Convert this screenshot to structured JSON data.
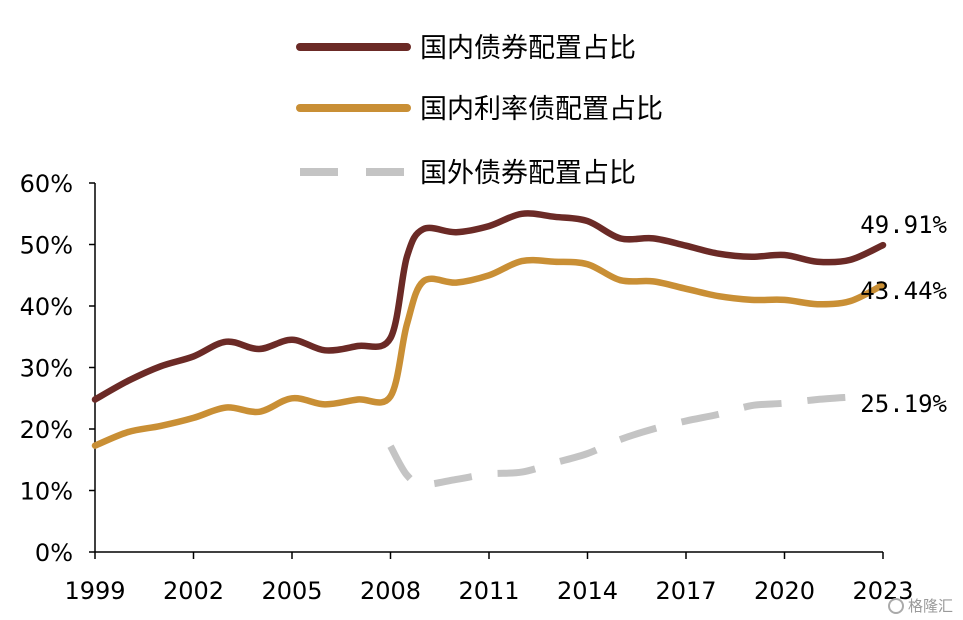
{
  "chart_data": {
    "type": "line",
    "ylim": [
      0,
      60
    ],
    "y_ticks": [
      "0%",
      "10%",
      "20%",
      "30%",
      "40%",
      "50%",
      "60%"
    ],
    "x_ticks": [
      "1999",
      "2002",
      "2005",
      "2008",
      "2011",
      "2014",
      "2017",
      "2020",
      "2023"
    ],
    "grid": false,
    "legend_position": "top",
    "series": [
      {
        "name": "国内债券配置占比",
        "color": "#6b2a26",
        "style": "solid",
        "end_label": "49.91%",
        "points": [
          [
            1999,
            24.8
          ],
          [
            2000,
            27.8
          ],
          [
            2001,
            30.2
          ],
          [
            2002,
            31.8
          ],
          [
            2003,
            34.2
          ],
          [
            2004,
            33.0
          ],
          [
            2005,
            34.5
          ],
          [
            2006,
            32.8
          ],
          [
            2007,
            33.5
          ],
          [
            2008,
            34.8
          ],
          [
            2008.5,
            48.0
          ],
          [
            2009,
            52.5
          ],
          [
            2010,
            52.0
          ],
          [
            2011,
            53.0
          ],
          [
            2012,
            55.0
          ],
          [
            2013,
            54.5
          ],
          [
            2014,
            53.8
          ],
          [
            2015,
            51.0
          ],
          [
            2016,
            51.0
          ],
          [
            2017,
            49.8
          ],
          [
            2018,
            48.5
          ],
          [
            2019,
            48.0
          ],
          [
            2020,
            48.3
          ],
          [
            2021,
            47.2
          ],
          [
            2022,
            47.5
          ],
          [
            2023,
            49.91
          ]
        ]
      },
      {
        "name": "国内利率债配置占比",
        "color": "#c98f35",
        "style": "solid",
        "end_label": "43.44%",
        "points": [
          [
            1999,
            17.3
          ],
          [
            2000,
            19.5
          ],
          [
            2001,
            20.5
          ],
          [
            2002,
            21.8
          ],
          [
            2003,
            23.5
          ],
          [
            2004,
            22.8
          ],
          [
            2005,
            25.0
          ],
          [
            2006,
            24.0
          ],
          [
            2007,
            24.8
          ],
          [
            2008,
            25.3
          ],
          [
            2008.5,
            37.0
          ],
          [
            2009,
            44.0
          ],
          [
            2010,
            43.8
          ],
          [
            2011,
            45.0
          ],
          [
            2012,
            47.3
          ],
          [
            2013,
            47.2
          ],
          [
            2014,
            46.8
          ],
          [
            2015,
            44.2
          ],
          [
            2016,
            44.0
          ],
          [
            2017,
            42.8
          ],
          [
            2018,
            41.6
          ],
          [
            2019,
            41.0
          ],
          [
            2020,
            41.0
          ],
          [
            2021,
            40.3
          ],
          [
            2022,
            40.8
          ],
          [
            2023,
            43.44
          ]
        ]
      },
      {
        "name": "国外债券配置占比",
        "color": "#c4c4c4",
        "style": "dashed",
        "end_label": "25.19%",
        "points": [
          [
            2008,
            17.2
          ],
          [
            2008.5,
            12.5
          ],
          [
            2009,
            11.0
          ],
          [
            2010,
            11.8
          ],
          [
            2011,
            12.7
          ],
          [
            2012,
            13.0
          ],
          [
            2013,
            14.5
          ],
          [
            2014,
            16.0
          ],
          [
            2015,
            18.3
          ],
          [
            2016,
            20.0
          ],
          [
            2017,
            21.3
          ],
          [
            2018,
            22.4
          ],
          [
            2019,
            23.8
          ],
          [
            2020,
            24.2
          ],
          [
            2021,
            24.8
          ],
          [
            2022,
            25.19
          ]
        ]
      }
    ]
  },
  "watermark": "格隆汇"
}
